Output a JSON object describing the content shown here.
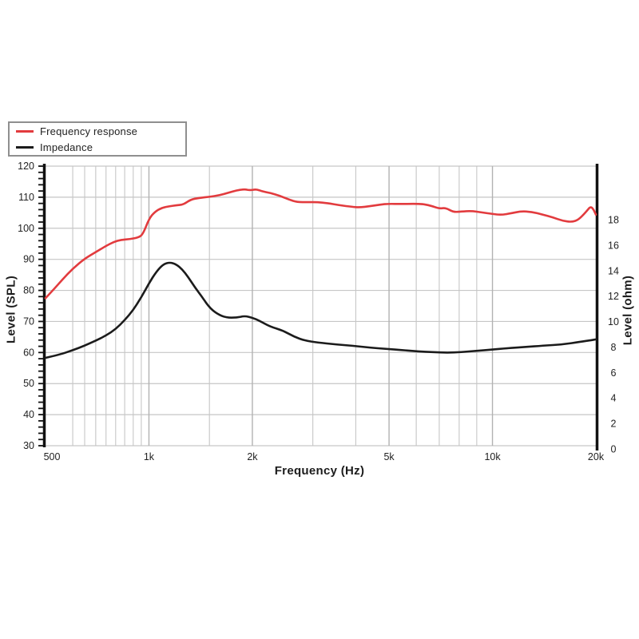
{
  "page": {
    "background": "#ffffff"
  },
  "legend": {
    "items": [
      {
        "label": "Frequency response",
        "color": "#e23b3e"
      },
      {
        "label": "Impedance",
        "color": "#1b1b1b"
      }
    ]
  },
  "axes": {
    "x": {
      "title": "Frequency (Hz)",
      "scale": "log",
      "tick_labels": [
        {
          "value": 500,
          "label": "500"
        },
        {
          "value": 1000,
          "label": "1k"
        },
        {
          "value": 2000,
          "label": "2k"
        },
        {
          "value": 5000,
          "label": "5k"
        },
        {
          "value": 10000,
          "label": "10k"
        },
        {
          "value": 20000,
          "label": "20k"
        }
      ],
      "major_gridlines": [
        1000,
        2000,
        5000,
        10000
      ],
      "minor_gridlines": [
        600,
        650,
        700,
        750,
        800,
        850,
        900,
        950,
        1500,
        3000,
        4000,
        6000,
        7000,
        8000,
        9000
      ]
    },
    "y_left": {
      "title": "Level (SPL)",
      "tick_labels": [
        30,
        40,
        50,
        60,
        70,
        80,
        90,
        100,
        110,
        120
      ],
      "minor_tick_step": 2
    },
    "y_right": {
      "title": "Level (ohm)",
      "tick_labels": [
        0,
        2,
        4,
        6,
        8,
        10,
        12,
        14,
        16,
        18
      ]
    }
  },
  "chart_data": {
    "type": "line",
    "x_scale": "log",
    "xlabel": "Frequency (Hz)",
    "xlim": [
      500,
      20000
    ],
    "ylabel_left": "Level (SPL)",
    "ylim_left": [
      30,
      120
    ],
    "ylabel_right": "Level (ohm)",
    "ylim_right": [
      0.25,
      22.2
    ],
    "grid": true,
    "legend_position": "top-left",
    "gridline_color": "#c6c6c6",
    "major_gridline_color": "#b2b2b2",
    "axis_color": "#111111",
    "series": [
      {
        "name": "Frequency response",
        "axis": "left",
        "unit": "dB SPL",
        "color": "#e23b3e",
        "width": 2.6,
        "points": [
          [
            500,
            77.5
          ],
          [
            530,
            80.5
          ],
          [
            560,
            83.5
          ],
          [
            600,
            87
          ],
          [
            650,
            90.2
          ],
          [
            700,
            92.3
          ],
          [
            750,
            94.3
          ],
          [
            790,
            95.6
          ],
          [
            830,
            96.3
          ],
          [
            880,
            96.5
          ],
          [
            930,
            97
          ],
          [
            960,
            98
          ],
          [
            1000,
            103
          ],
          [
            1040,
            105.3
          ],
          [
            1090,
            106.6
          ],
          [
            1150,
            107.1
          ],
          [
            1200,
            107.4
          ],
          [
            1260,
            107.6
          ],
          [
            1320,
            109.2
          ],
          [
            1400,
            109.8
          ],
          [
            1500,
            110.1
          ],
          [
            1600,
            110.6
          ],
          [
            1700,
            111.4
          ],
          [
            1800,
            112.2
          ],
          [
            1900,
            112.6
          ],
          [
            1970,
            112.2
          ],
          [
            2050,
            112.6
          ],
          [
            2130,
            111.9
          ],
          [
            2250,
            111.4
          ],
          [
            2400,
            110.5
          ],
          [
            2550,
            109.3
          ],
          [
            2700,
            108.4
          ],
          [
            2900,
            108.4
          ],
          [
            3100,
            108.4
          ],
          [
            3300,
            108.1
          ],
          [
            3600,
            107.4
          ],
          [
            3900,
            106.9
          ],
          [
            4100,
            106.7
          ],
          [
            4400,
            107.1
          ],
          [
            4700,
            107.6
          ],
          [
            5000,
            107.9
          ],
          [
            5400,
            107.8
          ],
          [
            5900,
            107.9
          ],
          [
            6300,
            107.8
          ],
          [
            6700,
            107.1
          ],
          [
            7000,
            106.3
          ],
          [
            7300,
            106.6
          ],
          [
            7700,
            105.2
          ],
          [
            8100,
            105.4
          ],
          [
            8700,
            105.6
          ],
          [
            9300,
            105.1
          ],
          [
            10000,
            104.6
          ],
          [
            10600,
            104.3
          ],
          [
            11300,
            104.8
          ],
          [
            12100,
            105.5
          ],
          [
            13000,
            105.3
          ],
          [
            14000,
            104.4
          ],
          [
            15000,
            103.5
          ],
          [
            16000,
            102.4
          ],
          [
            17000,
            102
          ],
          [
            17800,
            102.7
          ],
          [
            18700,
            105.2
          ],
          [
            19300,
            107.1
          ],
          [
            19700,
            106
          ],
          [
            20000,
            104.4
          ]
        ]
      },
      {
        "name": "Impedance",
        "axis": "right",
        "unit": "ohm",
        "color": "#1b1b1b",
        "width": 2.6,
        "points": [
          [
            500,
            7.15
          ],
          [
            550,
            7.4
          ],
          [
            600,
            7.75
          ],
          [
            650,
            8.1
          ],
          [
            700,
            8.5
          ],
          [
            750,
            8.9
          ],
          [
            800,
            9.4
          ],
          [
            850,
            10.1
          ],
          [
            900,
            10.9
          ],
          [
            950,
            11.9
          ],
          [
            1000,
            13
          ],
          [
            1050,
            13.9
          ],
          [
            1100,
            14.5
          ],
          [
            1150,
            14.65
          ],
          [
            1200,
            14.5
          ],
          [
            1250,
            14.1
          ],
          [
            1300,
            13.5
          ],
          [
            1360,
            12.7
          ],
          [
            1430,
            11.9
          ],
          [
            1500,
            11.1
          ],
          [
            1580,
            10.6
          ],
          [
            1680,
            10.3
          ],
          [
            1800,
            10.3
          ],
          [
            1900,
            10.45
          ],
          [
            2000,
            10.3
          ],
          [
            2100,
            10.05
          ],
          [
            2250,
            9.6
          ],
          [
            2450,
            9.3
          ],
          [
            2650,
            8.8
          ],
          [
            2850,
            8.5
          ],
          [
            3100,
            8.35
          ],
          [
            3500,
            8.2
          ],
          [
            3900,
            8.1
          ],
          [
            4400,
            7.95
          ],
          [
            4900,
            7.85
          ],
          [
            5500,
            7.75
          ],
          [
            6100,
            7.65
          ],
          [
            6700,
            7.6
          ],
          [
            7400,
            7.55
          ],
          [
            8100,
            7.6
          ],
          [
            9000,
            7.7
          ],
          [
            10000,
            7.8
          ],
          [
            11000,
            7.9
          ],
          [
            12500,
            8.0
          ],
          [
            14000,
            8.1
          ],
          [
            16000,
            8.2
          ],
          [
            18000,
            8.4
          ],
          [
            19500,
            8.55
          ],
          [
            20000,
            8.6
          ]
        ]
      }
    ]
  }
}
